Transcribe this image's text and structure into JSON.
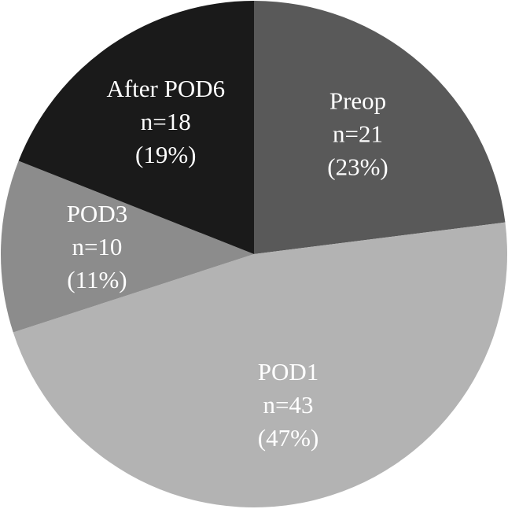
{
  "chart_data": {
    "type": "pie",
    "categories": [
      "Preop",
      "POD1",
      "POD3",
      "After POD6"
    ],
    "values": [
      23,
      47,
      11,
      19
    ],
    "value_labels": [
      "(23%)",
      "(47%)",
      "(11%)",
      "(19%)"
    ],
    "counts": [
      21,
      43,
      10,
      18
    ],
    "count_labels": [
      "n=21",
      "n=43",
      "n=10",
      "n=18"
    ],
    "colors": [
      "#595959",
      "#b3b3b3",
      "#8c8c8c",
      "#1a1a1a"
    ]
  }
}
